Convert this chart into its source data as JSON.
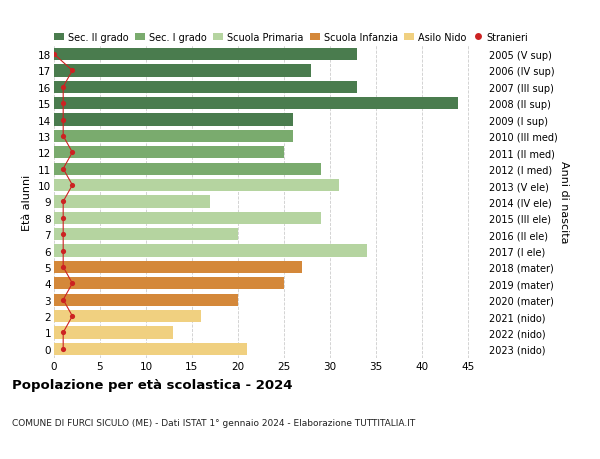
{
  "ages": [
    18,
    17,
    16,
    15,
    14,
    13,
    12,
    11,
    10,
    9,
    8,
    7,
    6,
    5,
    4,
    3,
    2,
    1,
    0
  ],
  "right_labels": [
    "2005 (V sup)",
    "2006 (IV sup)",
    "2007 (III sup)",
    "2008 (II sup)",
    "2009 (I sup)",
    "2010 (III med)",
    "2011 (II med)",
    "2012 (I med)",
    "2013 (V ele)",
    "2014 (IV ele)",
    "2015 (III ele)",
    "2016 (II ele)",
    "2017 (I ele)",
    "2018 (mater)",
    "2019 (mater)",
    "2020 (mater)",
    "2021 (nido)",
    "2022 (nido)",
    "2023 (nido)"
  ],
  "bar_values": [
    33,
    28,
    33,
    44,
    26,
    26,
    25,
    29,
    31,
    17,
    29,
    20,
    34,
    27,
    25,
    20,
    16,
    13,
    21
  ],
  "bar_colors": [
    "#4a7c4e",
    "#4a7c4e",
    "#4a7c4e",
    "#4a7c4e",
    "#4a7c4e",
    "#7aab6e",
    "#7aab6e",
    "#7aab6e",
    "#b5d4a0",
    "#b5d4a0",
    "#b5d4a0",
    "#b5d4a0",
    "#b5d4a0",
    "#d4883a",
    "#d4883a",
    "#d4883a",
    "#f0d080",
    "#f0d080",
    "#f0d080"
  ],
  "stranieri_values": [
    0,
    2,
    1,
    1,
    1,
    1,
    2,
    1,
    2,
    1,
    1,
    1,
    1,
    1,
    2,
    1,
    2,
    1,
    1
  ],
  "legend_labels": [
    "Sec. II grado",
    "Sec. I grado",
    "Scuola Primaria",
    "Scuola Infanzia",
    "Asilo Nido",
    "Stranieri"
  ],
  "legend_colors": [
    "#4a7c4e",
    "#7aab6e",
    "#b5d4a0",
    "#d4883a",
    "#f0d080",
    "#cc2222"
  ],
  "title": "Popolazione per età scolastica - 2024",
  "subtitle": "COMUNE DI FURCI SICULO (ME) - Dati ISTAT 1° gennaio 2024 - Elaborazione TUTTITALIA.IT",
  "ylabel_left": "Età alunni",
  "ylabel_right": "Anni di nascita",
  "xlim": [
    0,
    47
  ],
  "xticks": [
    0,
    5,
    10,
    15,
    20,
    25,
    30,
    35,
    40,
    45
  ],
  "background_color": "#ffffff",
  "grid_color": "#cccccc",
  "bar_height": 0.75
}
